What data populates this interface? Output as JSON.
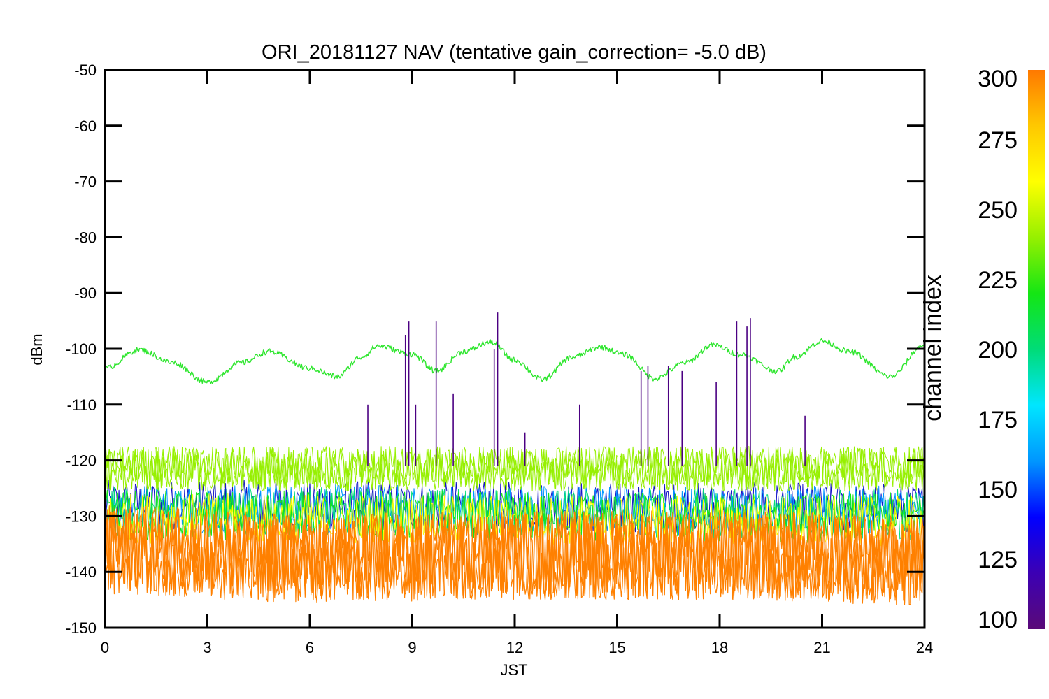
{
  "chart_data": {
    "type": "line",
    "title": "ORI_20181127 NAV (tentative gain_correction= -5.0 dB)",
    "xlabel": "JST",
    "ylabel": "dBm",
    "xlim": [
      0,
      24
    ],
    "ylim": [
      -150,
      -50
    ],
    "xticks": [
      0,
      3,
      6,
      9,
      12,
      15,
      18,
      21,
      24
    ],
    "yticks": [
      -50,
      -60,
      -70,
      -80,
      -90,
      -100,
      -110,
      -120,
      -130,
      -140,
      -150
    ],
    "xtick_labels": [
      "0",
      "3",
      "6",
      "9",
      "12",
      "15",
      "18",
      "21",
      "24"
    ],
    "ytick_labels": [
      "-50",
      "-60",
      "-70",
      "-80",
      "-90",
      "-100",
      "-110",
      "-120",
      "-130",
      "-140",
      "-150"
    ],
    "grid": false,
    "colorbar": {
      "label": "channel index",
      "range": [
        100,
        300
      ],
      "ticks": [
        100,
        125,
        150,
        175,
        200,
        225,
        250,
        275,
        300
      ],
      "tick_labels": [
        "100",
        "125",
        "150",
        "175",
        "200",
        "225",
        "250",
        "275",
        "300"
      ],
      "colormap": [
        "#5a0a78",
        "#3c00b4",
        "#0000ff",
        "#0096ff",
        "#00e6ff",
        "#00dc78",
        "#14e614",
        "#96f000",
        "#ffff00",
        "#ffc800",
        "#ff7800"
      ]
    },
    "series": [
      {
        "channel": 240,
        "color": "#2ee62e",
        "x": [
          0,
          1,
          2,
          3,
          4,
          4.8,
          6,
          6.8,
          7.5,
          8,
          9,
          9.7,
          10.5,
          11.3,
          12,
          12.8,
          13.7,
          14.5,
          15.2,
          16.1,
          17,
          17.8,
          18.6,
          19.7,
          20.2,
          21,
          21.8,
          23,
          24
        ],
        "y": [
          -103.5,
          -100.2,
          -102.5,
          -106,
          -102.5,
          -100.5,
          -103.5,
          -105,
          -101.5,
          -99.5,
          -101,
          -104,
          -100.5,
          -98.8,
          -102,
          -105.5,
          -101.5,
          -99.7,
          -101,
          -105.3,
          -102.5,
          -99.3,
          -101,
          -104,
          -101.5,
          -98.6,
          -100.5,
          -105,
          -99.3
        ]
      },
      {
        "channel": 265,
        "color": "#96f000",
        "x": [
          0,
          6,
          12,
          18,
          24
        ],
        "y": [
          -121.5,
          -121.5,
          -121.5,
          -121.5,
          -121.5
        ]
      },
      {
        "channel": 290,
        "color": "#ff8000",
        "x": [
          0,
          6,
          12,
          18,
          24
        ],
        "y": [
          -136,
          -137.5,
          -137,
          -137,
          -138
        ]
      }
    ],
    "spikes": {
      "color": "#4b0082",
      "x": [
        7.7,
        8.8,
        8.9,
        9.1,
        9.7,
        10.2,
        11.4,
        11.5,
        12.3,
        13.9,
        15.7,
        15.9,
        16.5,
        16.9,
        17.9,
        18.5,
        18.8,
        18.9,
        20.5
      ],
      "y": [
        -110,
        -97.5,
        -95,
        -110,
        -95,
        -108,
        -100,
        -93.5,
        -115,
        -110,
        -104,
        -103,
        -103,
        -104,
        -106,
        -95,
        -96,
        -94.5,
        -112
      ]
    }
  }
}
